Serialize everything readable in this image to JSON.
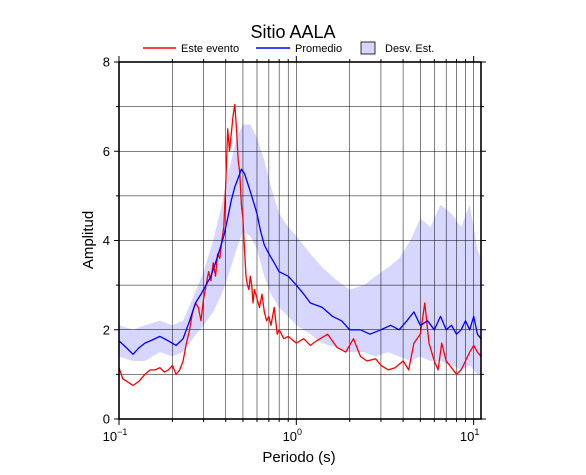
{
  "chart_data": {
    "type": "line",
    "title": "Sitio AALA",
    "xlabel": "Periodo (s)",
    "ylabel": "Amplitud",
    "x_scale": "log",
    "xlim": [
      0.1,
      11
    ],
    "ylim": [
      0,
      8
    ],
    "y_ticks": [
      0,
      2,
      4,
      6,
      8
    ],
    "y_tick_labels": [
      "0",
      "2",
      "4",
      "6",
      "8"
    ],
    "x_tick_labels": [
      {
        "base": "10",
        "exp": "−1"
      },
      {
        "base": "10",
        "exp": "0"
      },
      {
        "base": "10",
        "exp": "1"
      }
    ],
    "x_ticks": [
      0.1,
      1,
      10
    ],
    "grid": true,
    "legend_placement": "top",
    "legend": [
      {
        "label": "Este evento",
        "kind": "line",
        "color": "#ff0000"
      },
      {
        "label": "Promedio",
        "kind": "line",
        "color": "#0000ff"
      },
      {
        "label": "Desv. Est.",
        "kind": "band",
        "color": "#d6d6ff"
      }
    ],
    "series": [
      {
        "name": "Este evento",
        "color": "#ff0000",
        "x": [
          0.1,
          0.105,
          0.11,
          0.115,
          0.12,
          0.13,
          0.14,
          0.15,
          0.16,
          0.17,
          0.18,
          0.19,
          0.2,
          0.21,
          0.22,
          0.23,
          0.24,
          0.25,
          0.26,
          0.27,
          0.28,
          0.29,
          0.3,
          0.31,
          0.32,
          0.33,
          0.34,
          0.35,
          0.36,
          0.37,
          0.38,
          0.39,
          0.4,
          0.41,
          0.42,
          0.43,
          0.44,
          0.45,
          0.46,
          0.47,
          0.48,
          0.49,
          0.5,
          0.51,
          0.52,
          0.53,
          0.54,
          0.55,
          0.56,
          0.57,
          0.58,
          0.6,
          0.62,
          0.64,
          0.66,
          0.68,
          0.7,
          0.72,
          0.75,
          0.78,
          0.8,
          0.85,
          0.9,
          1.0,
          1.1,
          1.2,
          1.3,
          1.5,
          1.7,
          1.9,
          2.1,
          2.3,
          2.5,
          2.8,
          3.0,
          3.3,
          3.6,
          4.0,
          4.3,
          4.6,
          5.0,
          5.3,
          5.6,
          6.0,
          6.3,
          6.6,
          7.0,
          7.5,
          8.0,
          8.5,
          9.0,
          9.5,
          10.0,
          10.5,
          11.0
        ],
        "y": [
          1.15,
          0.9,
          0.85,
          0.8,
          0.75,
          0.85,
          1.0,
          1.1,
          1.1,
          1.15,
          1.05,
          1.1,
          1.2,
          1.0,
          1.1,
          1.3,
          1.7,
          2.0,
          2.4,
          2.6,
          2.5,
          2.2,
          2.7,
          3.0,
          3.3,
          3.1,
          3.5,
          3.2,
          3.7,
          3.6,
          4.0,
          4.3,
          5.3,
          6.5,
          6.0,
          6.4,
          6.8,
          7.05,
          6.5,
          5.8,
          5.5,
          4.8,
          4.5,
          3.8,
          3.2,
          3.0,
          2.9,
          3.2,
          3.0,
          2.6,
          2.9,
          2.7,
          2.5,
          2.8,
          2.4,
          2.2,
          2.3,
          2.1,
          2.5,
          1.9,
          2.0,
          1.8,
          1.85,
          1.7,
          1.8,
          1.65,
          1.75,
          1.9,
          1.6,
          1.5,
          1.8,
          1.4,
          1.3,
          1.35,
          1.2,
          1.1,
          1.15,
          1.3,
          1.1,
          1.7,
          1.9,
          2.6,
          1.7,
          1.3,
          1.1,
          1.7,
          1.3,
          1.15,
          1.0,
          1.1,
          1.3,
          1.5,
          1.65,
          1.5,
          1.4
        ]
      },
      {
        "name": "Promedio",
        "color": "#0000ff",
        "x": [
          0.1,
          0.11,
          0.12,
          0.13,
          0.14,
          0.15,
          0.17,
          0.19,
          0.21,
          0.23,
          0.25,
          0.27,
          0.29,
          0.31,
          0.33,
          0.35,
          0.37,
          0.39,
          0.41,
          0.43,
          0.45,
          0.47,
          0.49,
          0.51,
          0.53,
          0.55,
          0.57,
          0.6,
          0.63,
          0.66,
          0.7,
          0.75,
          0.8,
          0.9,
          1.0,
          1.1,
          1.2,
          1.4,
          1.6,
          1.8,
          2.0,
          2.3,
          2.6,
          3.0,
          3.4,
          3.8,
          4.2,
          4.6,
          5.0,
          5.5,
          6.0,
          6.5,
          7.0,
          7.5,
          8.0,
          8.5,
          9.0,
          9.5,
          10.0,
          10.5,
          11.0
        ],
        "y": [
          1.75,
          1.6,
          1.45,
          1.6,
          1.7,
          1.75,
          1.85,
          1.75,
          1.65,
          1.8,
          2.2,
          2.6,
          2.8,
          3.0,
          3.2,
          3.5,
          3.8,
          4.1,
          4.5,
          4.9,
          5.2,
          5.4,
          5.6,
          5.5,
          5.3,
          5.1,
          4.9,
          4.6,
          4.2,
          3.9,
          3.7,
          3.5,
          3.3,
          3.2,
          3.0,
          2.8,
          2.6,
          2.5,
          2.3,
          2.2,
          2.0,
          2.0,
          1.9,
          2.0,
          2.1,
          2.0,
          2.2,
          2.4,
          2.1,
          2.2,
          2.0,
          2.3,
          2.0,
          2.1,
          1.9,
          2.0,
          2.2,
          2.0,
          2.3,
          1.9,
          1.8
        ]
      }
    ],
    "band": {
      "name": "Desv. Est.",
      "color": "#d6d6ff",
      "x": [
        0.1,
        0.12,
        0.14,
        0.17,
        0.2,
        0.23,
        0.26,
        0.3,
        0.34,
        0.38,
        0.42,
        0.46,
        0.5,
        0.55,
        0.6,
        0.66,
        0.72,
        0.8,
        0.9,
        1.0,
        1.2,
        1.4,
        1.7,
        2.0,
        2.4,
        2.8,
        3.3,
        3.8,
        4.4,
        5.0,
        5.7,
        6.5,
        7.5,
        8.5,
        9.5,
        10.5,
        11.0
      ],
      "upper": [
        2.1,
        2.0,
        2.1,
        2.2,
        2.1,
        2.2,
        2.7,
        3.3,
        4.0,
        4.8,
        5.6,
        6.3,
        6.6,
        6.6,
        6.3,
        5.8,
        5.2,
        4.6,
        4.3,
        4.1,
        3.7,
        3.4,
        3.1,
        2.9,
        3.0,
        3.2,
        3.4,
        3.6,
        4.0,
        4.5,
        4.3,
        4.8,
        4.6,
        4.3,
        4.8,
        3.8,
        3.6
      ],
      "lower": [
        1.4,
        1.3,
        1.3,
        1.5,
        1.4,
        1.5,
        1.8,
        2.1,
        2.4,
        2.8,
        3.3,
        3.8,
        4.2,
        4.1,
        3.8,
        3.2,
        2.8,
        2.5,
        2.3,
        2.1,
        1.9,
        1.7,
        1.6,
        1.5,
        1.5,
        1.4,
        1.5,
        1.4,
        1.3,
        1.4,
        1.3,
        1.3,
        1.2,
        1.1,
        1.2,
        1.0,
        1.0
      ]
    }
  }
}
